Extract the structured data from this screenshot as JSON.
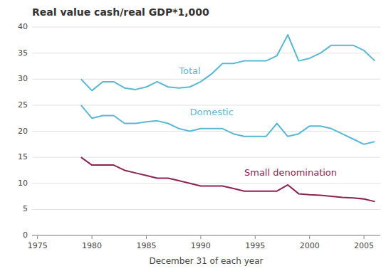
{
  "chart_data": {
    "type": "line",
    "title": "Real value cash/real GDP*1,000",
    "xlabel": "December 31 of each year",
    "x": [
      1979,
      1980,
      1981,
      1982,
      1983,
      1984,
      1985,
      1986,
      1987,
      1988,
      1989,
      1990,
      1991,
      1992,
      1993,
      1994,
      1995,
      1996,
      1997,
      1998,
      1999,
      2000,
      2001,
      2002,
      2003,
      2004,
      2005,
      2006
    ],
    "series": [
      {
        "color": "#5bb8d4",
        "values": [
          30.0,
          27.8,
          29.5,
          29.5,
          28.3,
          28.0,
          28.5,
          29.5,
          28.5,
          28.3,
          28.5,
          29.5,
          31.0,
          33.0,
          33.0,
          33.5,
          33.5,
          33.5,
          34.5,
          38.5,
          33.5,
          34.0,
          35.0,
          36.5,
          36.5,
          36.5,
          35.5,
          33.5
        ]
      },
      {
        "color": "#5bb8d4",
        "values": [
          25.0,
          22.5,
          23.0,
          23.0,
          21.5,
          21.5,
          21.8,
          22.0,
          21.5,
          20.5,
          20.0,
          20.5,
          20.5,
          20.5,
          19.5,
          19.0,
          19.0,
          19.0,
          21.5,
          19.0,
          19.5,
          21.0,
          21.0,
          20.5,
          19.5,
          18.5,
          17.5,
          18.0
        ]
      },
      {
        "color": "#8b2252",
        "values": [
          15.0,
          13.5,
          13.5,
          13.5,
          12.5,
          12.0,
          11.5,
          11.0,
          11.0,
          10.5,
          10.0,
          9.5,
          9.5,
          9.5,
          9.0,
          8.5,
          8.5,
          8.5,
          8.5,
          9.7,
          8.0,
          7.8,
          7.7,
          7.5,
          7.3,
          7.2,
          7.0,
          6.5
        ]
      }
    ],
    "annotations": [
      {
        "text": "Total",
        "x": 1988,
        "y": 31.5,
        "color": "#5bb8d4"
      },
      {
        "text": "Domestic",
        "x": 1989,
        "y": 23.5,
        "color": "#5bb8d4"
      },
      {
        "text": "Small denomination",
        "x": 1994,
        "y": 12.0,
        "color": "#8b2252"
      }
    ],
    "xlim": [
      1974.5,
      2006.5
    ],
    "ylim": [
      0,
      40
    ],
    "xticks": [
      1975,
      1980,
      1985,
      1990,
      1995,
      2000,
      2005
    ],
    "yticks": [
      0,
      5,
      10,
      15,
      20,
      25,
      30,
      35,
      40
    ],
    "grid": true
  }
}
